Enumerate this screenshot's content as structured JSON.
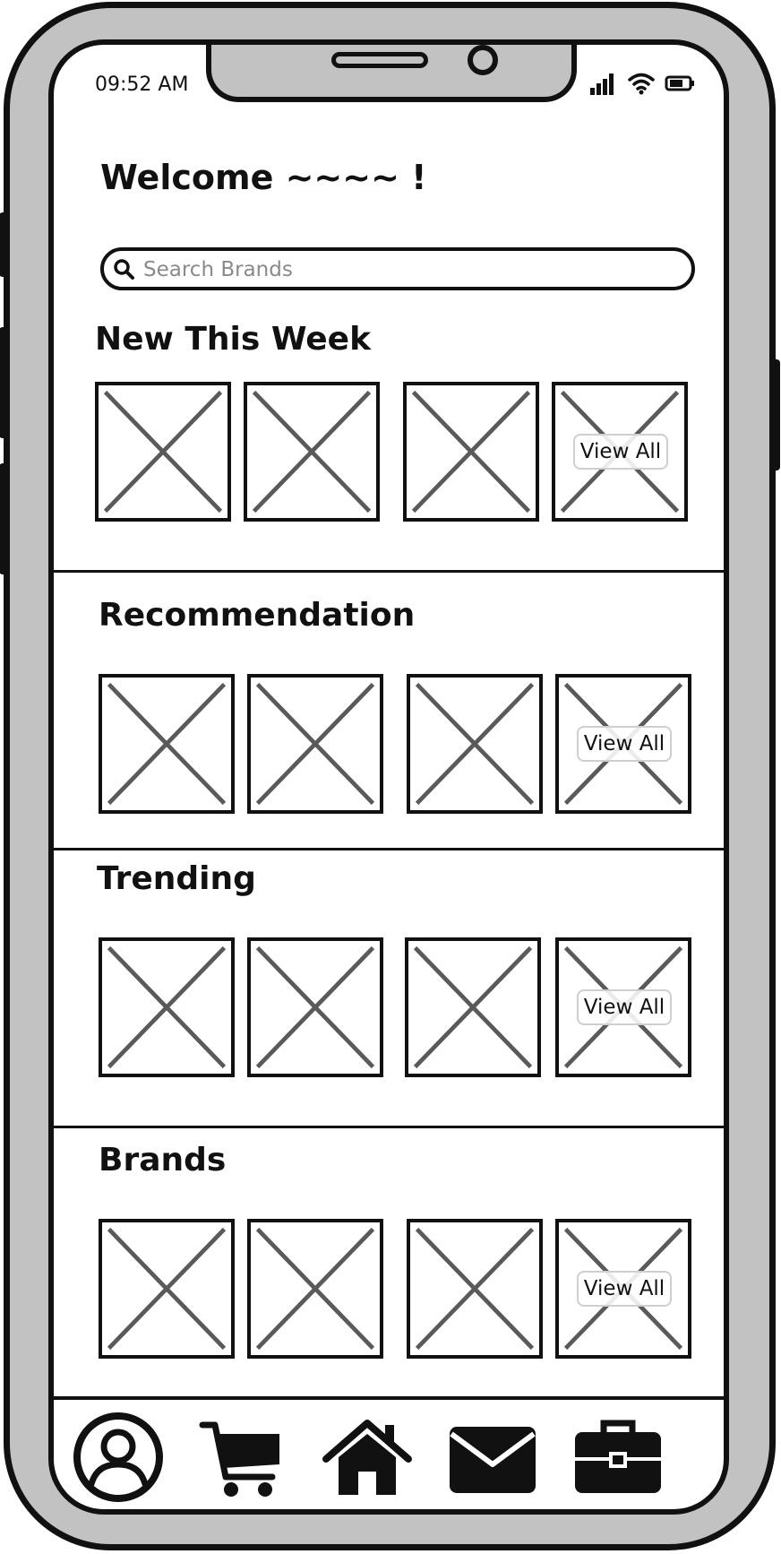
{
  "status_bar": {
    "time": "09:52 AM"
  },
  "greeting": "Welcome ~~~~ !",
  "search": {
    "placeholder": "Search Brands",
    "value": ""
  },
  "sections": [
    {
      "title": "New This Week",
      "view_all_label": "View All"
    },
    {
      "title": "Recommendation",
      "view_all_label": "View All"
    },
    {
      "title": "Trending",
      "view_all_label": "View All"
    },
    {
      "title": "Brands",
      "view_all_label": "View All"
    }
  ],
  "bottom_nav": {
    "items": [
      {
        "icon": "profile-icon"
      },
      {
        "icon": "cart-icon"
      },
      {
        "icon": "home-icon"
      },
      {
        "icon": "mail-icon"
      },
      {
        "icon": "briefcase-icon"
      }
    ]
  }
}
